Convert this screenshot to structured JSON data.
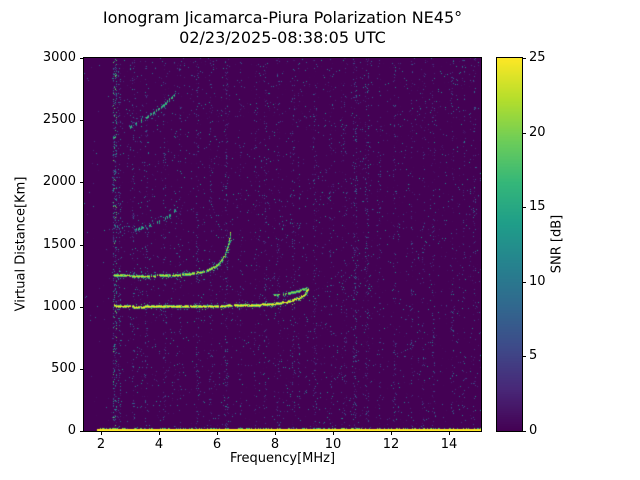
{
  "figure": {
    "title": "Ionogram Jicamarca-Piura Polarization NE45°",
    "subtitle": "02/23/2025-08:38:05 UTC",
    "xlabel": "Frequency[MHz]",
    "ylabel": "Virtual Distance[Km]",
    "colorbar_label": "SNR [dB]"
  },
  "chart_data": {
    "type": "heatmap",
    "title": "Ionogram Jicamarca-Piura Polarization NE45°",
    "subtitle": "02/23/2025-08:38:05 UTC",
    "xlabel": "Frequency[MHz]",
    "ylabel": "Virtual Distance[Km]",
    "xlim": [
      1.4,
      15.1
    ],
    "ylim": [
      0,
      3000
    ],
    "xticks": [
      2,
      4,
      6,
      8,
      10,
      12,
      14
    ],
    "yticks": [
      0,
      500,
      1000,
      1500,
      2000,
      2500,
      3000
    ],
    "grid": false,
    "colormap": "viridis",
    "colormap_stops": [
      "#440154",
      "#482878",
      "#3e4a89",
      "#31688e",
      "#26828e",
      "#1f9e89",
      "#35b779",
      "#6dcd59",
      "#b4de2c",
      "#fde725"
    ],
    "colorbar": {
      "label": "SNR [dB]",
      "min": 0,
      "max": 25,
      "ticks": [
        0,
        5,
        10,
        15,
        20,
        25
      ],
      "position": "right"
    },
    "noise": {
      "base_density": 0.035,
      "max_snr": 13,
      "quiet_below_mhz": 2.35,
      "quiet_factor": 0.25
    },
    "ground_line": {
      "km": 10,
      "from_mhz": 1.85,
      "to_mhz": 15.1,
      "snr": 25
    },
    "traces": [
      {
        "name": "f-layer-first-hop",
        "snr": 25,
        "density": 0.97,
        "spread": 7,
        "scatter": 0.55,
        "points": [
          [
            2.45,
            1010
          ],
          [
            3.2,
            1000
          ],
          [
            4.3,
            1005
          ],
          [
            5.4,
            1005
          ],
          [
            6.4,
            1010
          ],
          [
            7.3,
            1015
          ],
          [
            8.0,
            1025
          ],
          [
            8.5,
            1045
          ],
          [
            8.85,
            1075
          ],
          [
            9.05,
            1110
          ],
          [
            9.12,
            1140
          ]
        ]
      },
      {
        "name": "f-layer-first-hop-foldback",
        "snr": 21,
        "density": 0.85,
        "spread": 5,
        "scatter": 0.4,
        "points": [
          [
            9.05,
            1150
          ],
          [
            8.75,
            1125
          ],
          [
            8.35,
            1105
          ],
          [
            7.95,
            1095
          ]
        ]
      },
      {
        "name": "f-layer-second-hop",
        "snr": 23,
        "density": 0.9,
        "spread": 9,
        "scatter": 0.55,
        "points": [
          [
            2.45,
            1255
          ],
          [
            3.3,
            1248
          ],
          [
            4.2,
            1252
          ],
          [
            5.0,
            1262
          ],
          [
            5.6,
            1288
          ],
          [
            6.0,
            1335
          ],
          [
            6.25,
            1410
          ],
          [
            6.38,
            1500
          ],
          [
            6.45,
            1600
          ]
        ]
      },
      {
        "name": "multi-reflection-trace",
        "snr": 17,
        "density": 0.5,
        "spread": 11,
        "scatter": 0.6,
        "points": [
          [
            3.1,
            1615
          ],
          [
            3.6,
            1652
          ],
          [
            4.0,
            1692
          ],
          [
            4.35,
            1735
          ],
          [
            4.62,
            1790
          ]
        ]
      },
      {
        "name": "upper-trace",
        "snr": 18,
        "density": 0.55,
        "spread": 9,
        "scatter": 0.5,
        "points": [
          [
            2.98,
            2445
          ],
          [
            3.35,
            2495
          ],
          [
            3.75,
            2555
          ],
          [
            4.15,
            2625
          ],
          [
            4.5,
            2700
          ]
        ]
      },
      {
        "name": "left-scatter-patch",
        "snr": 13,
        "density": 0.3,
        "spread": 16,
        "scatter": 0.8,
        "points": [
          [
            2.4,
            1655
          ],
          [
            2.95,
            1625
          ]
        ]
      }
    ],
    "rfi_bands": [
      {
        "mhz": 2.45,
        "width_mhz": 0.12,
        "density": 0.3,
        "max_snr": 20
      },
      {
        "mhz": 2.62,
        "width_mhz": 0.06,
        "density": 0.14,
        "max_snr": 12
      },
      {
        "mhz": 3.1,
        "width_mhz": 0.07,
        "density": 0.12,
        "max_snr": 10
      },
      {
        "mhz": 3.55,
        "width_mhz": 0.06,
        "density": 0.1,
        "max_snr": 9
      },
      {
        "mhz": 4.15,
        "width_mhz": 0.06,
        "density": 0.1,
        "max_snr": 9
      },
      {
        "mhz": 4.7,
        "width_mhz": 0.05,
        "density": 0.08,
        "max_snr": 8
      },
      {
        "mhz": 5.3,
        "width_mhz": 0.08,
        "density": 0.13,
        "max_snr": 10
      },
      {
        "mhz": 5.75,
        "width_mhz": 0.05,
        "density": 0.08,
        "max_snr": 8
      },
      {
        "mhz": 6.3,
        "width_mhz": 0.1,
        "density": 0.16,
        "max_snr": 12
      },
      {
        "mhz": 6.8,
        "width_mhz": 0.05,
        "density": 0.08,
        "max_snr": 8
      },
      {
        "mhz": 7.3,
        "width_mhz": 0.06,
        "density": 0.09,
        "max_snr": 9
      },
      {
        "mhz": 7.65,
        "width_mhz": 0.07,
        "density": 0.12,
        "max_snr": 10
      },
      {
        "mhz": 8.1,
        "width_mhz": 0.05,
        "density": 0.08,
        "max_snr": 8
      },
      {
        "mhz": 8.6,
        "width_mhz": 0.06,
        "density": 0.09,
        "max_snr": 9
      },
      {
        "mhz": 9.35,
        "width_mhz": 0.08,
        "density": 0.12,
        "max_snr": 10
      },
      {
        "mhz": 9.9,
        "width_mhz": 0.05,
        "density": 0.08,
        "max_snr": 8
      },
      {
        "mhz": 10.4,
        "width_mhz": 0.06,
        "density": 0.09,
        "max_snr": 9
      },
      {
        "mhz": 10.75,
        "width_mhz": 0.1,
        "density": 0.15,
        "max_snr": 11
      },
      {
        "mhz": 11.15,
        "width_mhz": 0.1,
        "density": 0.15,
        "max_snr": 11
      },
      {
        "mhz": 11.6,
        "width_mhz": 0.06,
        "density": 0.09,
        "max_snr": 9
      },
      {
        "mhz": 12.1,
        "width_mhz": 0.08,
        "density": 0.11,
        "max_snr": 10
      },
      {
        "mhz": 12.7,
        "width_mhz": 0.06,
        "density": 0.09,
        "max_snr": 8
      },
      {
        "mhz": 13.1,
        "width_mhz": 0.05,
        "density": 0.08,
        "max_snr": 8
      },
      {
        "mhz": 13.45,
        "width_mhz": 0.08,
        "density": 0.11,
        "max_snr": 10
      },
      {
        "mhz": 14.1,
        "width_mhz": 0.06,
        "density": 0.09,
        "max_snr": 9
      },
      {
        "mhz": 14.5,
        "width_mhz": 0.05,
        "density": 0.08,
        "max_snr": 8
      },
      {
        "mhz": 14.85,
        "width_mhz": 0.07,
        "density": 0.1,
        "max_snr": 9
      }
    ]
  }
}
